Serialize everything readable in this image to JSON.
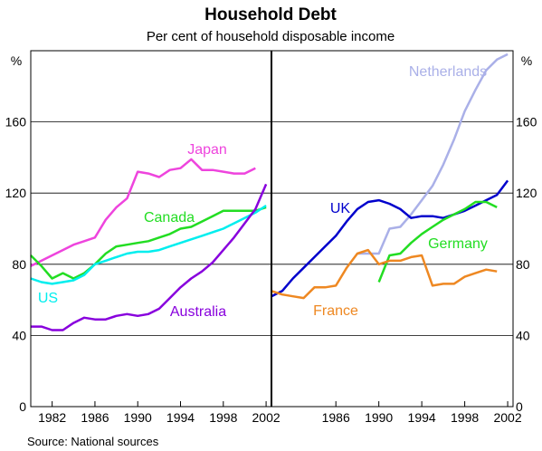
{
  "chart_data": {
    "type": "line",
    "title": "Household Debt",
    "subtitle": "Per cent of household disposable income",
    "unit": "%",
    "source": "Source: National sources",
    "ylim": [
      0,
      200
    ],
    "yticks": [
      0,
      40,
      80,
      120,
      160
    ],
    "grid": true,
    "panels": [
      {
        "xlim": [
          1980,
          2002.5
        ],
        "xticks": [
          1982,
          1986,
          1990,
          1994,
          1998,
          2002
        ],
        "series": [
          {
            "name": "Japan",
            "color": "#ee44dd",
            "x": [
              1980,
              1981,
              1982,
              1983,
              1984,
              1985,
              1986,
              1987,
              1988,
              1989,
              1990,
              1991,
              1992,
              1993,
              1994,
              1995,
              1996,
              1997,
              1998,
              1999,
              2000,
              2001
            ],
            "y": [
              79,
              82,
              85,
              88,
              91,
              93,
              95,
              105,
              112,
              117,
              132,
              131,
              129,
              133,
              134,
              139,
              133,
              133,
              132,
              131,
              131,
              134
            ]
          },
          {
            "name": "Canada",
            "color": "#22dd22",
            "x": [
              1980,
              1981,
              1982,
              1983,
              1984,
              1985,
              1986,
              1987,
              1988,
              1989,
              1990,
              1991,
              1992,
              1993,
              1994,
              1995,
              1996,
              1997,
              1998,
              1999,
              2000,
              2001,
              2002
            ],
            "y": [
              85,
              79,
              72,
              75,
              72,
              75,
              80,
              86,
              90,
              91,
              92,
              93,
              95,
              97,
              100,
              101,
              104,
              107,
              110,
              110,
              110,
              110,
              112
            ]
          },
          {
            "name": "US",
            "color": "#00eeee",
            "x": [
              1980,
              1981,
              1982,
              1983,
              1984,
              1985,
              1986,
              1987,
              1988,
              1989,
              1990,
              1991,
              1992,
              1993,
              1994,
              1995,
              1996,
              1997,
              1998,
              1999,
              2000,
              2001,
              2002
            ],
            "y": [
              72,
              70,
              69,
              70,
              71,
              74,
              80,
              82,
              84,
              86,
              87,
              87,
              88,
              90,
              92,
              94,
              96,
              98,
              100,
              103,
              106,
              109,
              113
            ]
          },
          {
            "name": "Australia",
            "color": "#8800dd",
            "x": [
              1980,
              1981,
              1982,
              1983,
              1984,
              1985,
              1986,
              1987,
              1988,
              1989,
              1990,
              1991,
              1992,
              1993,
              1994,
              1995,
              1996,
              1997,
              1998,
              1999,
              2000,
              2001,
              2002
            ],
            "y": [
              45,
              45,
              43,
              43,
              47,
              50,
              49,
              49,
              51,
              52,
              51,
              52,
              55,
              61,
              67,
              72,
              76,
              81,
              88,
              95,
              103,
              111,
              125
            ]
          }
        ]
      },
      {
        "xlim": [
          1980,
          2002.5
        ],
        "xticks": [
          1986,
          1990,
          1994,
          1998,
          2002
        ],
        "series": [
          {
            "name": "Netherlands",
            "color": "#aab0e8",
            "x": [
              1988,
              1989,
              1990,
              1991,
              1992,
              1993,
              1994,
              1995,
              1996,
              1997,
              1998,
              1999,
              2000,
              2001,
              2002
            ],
            "y": [
              86,
              86,
              86,
              100,
              101,
              108,
              116,
              124,
              136,
              150,
              166,
              178,
              189,
              195,
              198
            ]
          },
          {
            "name": "UK",
            "color": "#0000cc",
            "x": [
              1980,
              1981,
              1982,
              1983,
              1984,
              1985,
              1986,
              1987,
              1988,
              1989,
              1990,
              1991,
              1992,
              1993,
              1994,
              1995,
              1996,
              1997,
              1998,
              1999,
              2000,
              2001,
              2002
            ],
            "y": [
              62,
              65,
              72,
              78,
              84,
              90,
              96,
              104,
              111,
              115,
              116,
              114,
              111,
              106,
              107,
              107,
              106,
              108,
              110,
              113,
              116,
              119,
              127
            ]
          },
          {
            "name": "Germany",
            "color": "#22dd22",
            "x": [
              1990,
              1991,
              1992,
              1993,
              1994,
              1995,
              1996,
              1997,
              1998,
              1999,
              2000,
              2001
            ],
            "y": [
              70,
              85,
              86,
              92,
              97,
              101,
              105,
              108,
              111,
              115,
              115,
              112
            ]
          },
          {
            "name": "France",
            "color": "#ee8822",
            "x": [
              1980,
              1981,
              1982,
              1983,
              1984,
              1985,
              1986,
              1987,
              1988,
              1989,
              1990,
              1991,
              1992,
              1993,
              1994,
              1995,
              1996,
              1997,
              1998,
              1999,
              2000,
              2001
            ],
            "y": [
              65,
              63,
              62,
              61,
              67,
              67,
              68,
              78,
              86,
              88,
              80,
              82,
              82,
              84,
              85,
              68,
              69,
              69,
              73,
              75,
              77,
              76
            ]
          }
        ]
      }
    ]
  }
}
